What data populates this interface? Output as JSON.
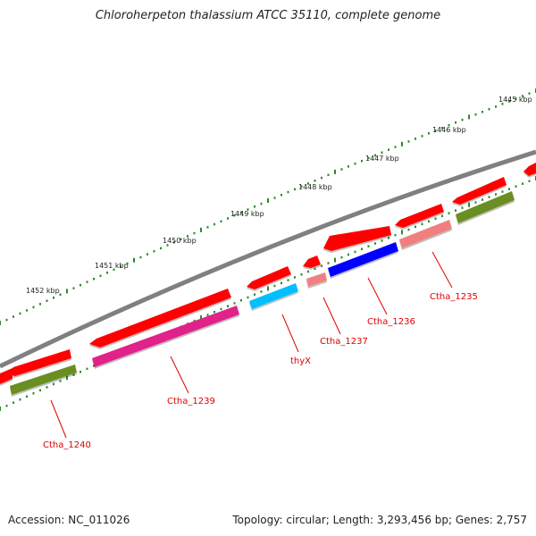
{
  "title": "Chloroherpeton thalassium ATCC 35110, complete genome",
  "footer": {
    "accession": "Accession: NC_011026",
    "summary": "Topology: circular; Length: 3,293,456 bp; Genes: 2,757"
  },
  "kbp_labels": [
    "1445 kbp",
    "1446 kbp",
    "1447 kbp",
    "1448 kbp",
    "1449 kbp",
    "1450 kbp",
    "1451 kbp",
    "1452 kbp"
  ],
  "gene_labels": [
    "Ctha_1235",
    "Ctha_1236",
    "Ctha_1237",
    "thyX",
    "Ctha_1239",
    "Ctha_1240"
  ],
  "colors": {
    "backbone": "#808080",
    "ticks": "#2a8a2a",
    "gene_label": "#e00000",
    "cds_red": "#ff0000",
    "olive": "#6b8e23",
    "pink": "#f08080",
    "blue": "#0000ff",
    "cyan": "#00bfff",
    "magenta": "#e0208a"
  }
}
